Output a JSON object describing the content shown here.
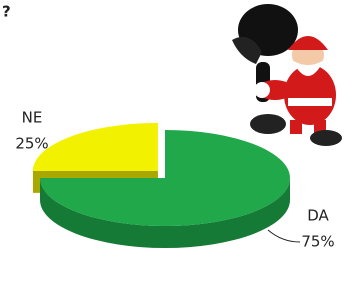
{
  "chart_data": {
    "type": "pie",
    "title": "?",
    "categories": [
      "NE",
      "DA"
    ],
    "values": [
      25,
      75
    ],
    "value_labels": [
      "25%",
      "75%"
    ],
    "colors": [
      "#f2f200",
      "#20a84a"
    ],
    "side_colors": [
      "#a8a800",
      "#157a35"
    ]
  }
}
